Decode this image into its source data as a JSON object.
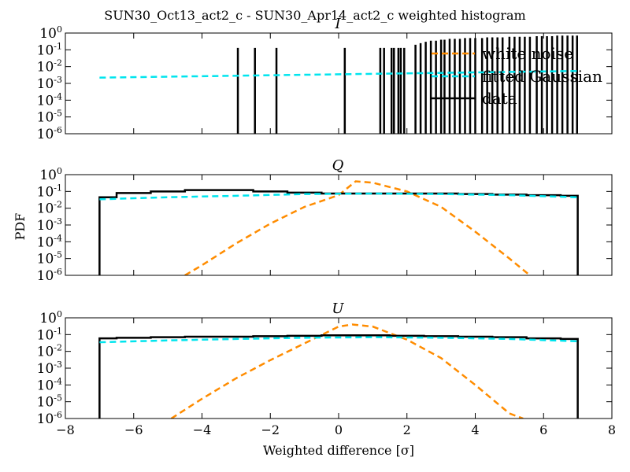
{
  "figure": {
    "title": "SUN30_Oct13_act2_c - SUN30_Apr14_act2_c weighted histogram",
    "ylabel": "PDF",
    "xlabel": "Weighted difference [σ]"
  },
  "colors": {
    "data": "#000000",
    "white_noise": "#ff8c00",
    "fitted_gaussian": "#00e5ee"
  },
  "legend": {
    "position": "upper-right",
    "entries": [
      {
        "key": "white_noise",
        "label": "white noise"
      },
      {
        "key": "fitted_gaussian",
        "label": "fitted Gaussian"
      },
      {
        "key": "data",
        "label": "data"
      }
    ]
  },
  "chart_data": [
    {
      "type": "line",
      "title": "I",
      "xlim": [
        -8,
        8
      ],
      "ylim": [
        1e-06,
        1
      ],
      "yscale": "log",
      "xticks": [
        -8,
        -6,
        -4,
        -2,
        0,
        2,
        4,
        6,
        8
      ],
      "xtick_labels": [
        "−8",
        "−6",
        "−4",
        "−2",
        "0",
        "2",
        "4",
        "6",
        "8"
      ],
      "yticks": [
        1e-06,
        1e-05,
        0.0001,
        0.001,
        0.01,
        0.1,
        1
      ],
      "ytick_labels": [
        {
          "base": "10",
          "exp": "-6"
        },
        {
          "base": "10",
          "exp": "-5"
        },
        {
          "base": "10",
          "exp": "-4"
        },
        {
          "base": "10",
          "exp": "-3"
        },
        {
          "base": "10",
          "exp": "-2"
        },
        {
          "base": "10",
          "exp": "-1"
        },
        {
          "base": "10",
          "exp": "0"
        }
      ],
      "show_xticklabels": false,
      "series": [
        {
          "key": "data",
          "style": "spikes",
          "x": [
            -2.95,
            -2.45,
            -1.82,
            0.18,
            1.22,
            1.33,
            1.55,
            1.62,
            1.75,
            1.82,
            1.92,
            2.25,
            2.4,
            2.55,
            2.7,
            2.85,
            3.0,
            3.1,
            3.25,
            3.4,
            3.55,
            3.7,
            3.85,
            4.0,
            4.2,
            4.35,
            4.5,
            4.65,
            4.8,
            5.0,
            5.15,
            5.3,
            5.45,
            5.6,
            5.8,
            5.95,
            6.1,
            6.25,
            6.4,
            6.55,
            6.7,
            6.85,
            6.98
          ],
          "values": [
            0.13,
            0.13,
            0.13,
            0.13,
            0.13,
            0.13,
            0.13,
            0.13,
            0.13,
            0.13,
            0.13,
            0.2,
            0.25,
            0.3,
            0.35,
            0.35,
            0.4,
            0.4,
            0.45,
            0.45,
            0.45,
            0.5,
            0.5,
            0.5,
            0.5,
            0.55,
            0.55,
            0.55,
            0.55,
            0.6,
            0.6,
            0.6,
            0.6,
            0.6,
            0.65,
            0.65,
            0.65,
            0.65,
            0.7,
            0.7,
            0.7,
            0.7,
            0.7
          ]
        },
        {
          "key": "fitted_gaussian",
          "style": "dashed",
          "x": [
            -7.0,
            7.0
          ],
          "values": [
            0.0022,
            0.0055
          ]
        }
      ]
    },
    {
      "type": "line",
      "title": "Q",
      "xlim": [
        -8,
        8
      ],
      "ylim": [
        1e-06,
        1
      ],
      "yscale": "log",
      "xticks": [
        -8,
        -6,
        -4,
        -2,
        0,
        2,
        4,
        6,
        8
      ],
      "xtick_labels": [
        "−8",
        "−6",
        "−4",
        "−2",
        "0",
        "2",
        "4",
        "6",
        "8"
      ],
      "yticks": [
        1e-06,
        1e-05,
        0.0001,
        0.001,
        0.01,
        0.1,
        1
      ],
      "ytick_labels": [
        {
          "base": "10",
          "exp": "-6"
        },
        {
          "base": "10",
          "exp": "-5"
        },
        {
          "base": "10",
          "exp": "-4"
        },
        {
          "base": "10",
          "exp": "-3"
        },
        {
          "base": "10",
          "exp": "-2"
        },
        {
          "base": "10",
          "exp": "-1"
        },
        {
          "base": "10",
          "exp": "0"
        }
      ],
      "show_xticklabels": false,
      "series": [
        {
          "key": "data",
          "style": "step",
          "x": [
            -7.0,
            -6.0,
            -5.0,
            -4.0,
            -3.0,
            -2.0,
            -1.0,
            0.0,
            1.0,
            2.0,
            3.0,
            4.0,
            5.0,
            6.0,
            7.0
          ],
          "values": [
            0.045,
            0.08,
            0.1,
            0.12,
            0.12,
            0.1,
            0.085,
            0.075,
            0.075,
            0.075,
            0.075,
            0.07,
            0.065,
            0.06,
            0.055
          ]
        },
        {
          "key": "fitted_gaussian",
          "style": "dashed",
          "x": [
            -7.0,
            -5.0,
            -3.0,
            -1.0,
            1.0,
            3.0,
            5.0,
            7.0
          ],
          "values": [
            0.034,
            0.045,
            0.055,
            0.07,
            0.075,
            0.07,
            0.06,
            0.045
          ]
        },
        {
          "key": "white_noise",
          "style": "dashed",
          "x": [
            -4.5,
            -4.0,
            -3.0,
            -2.0,
            -1.0,
            0.0,
            0.5,
            1.0,
            2.0,
            3.0,
            4.0,
            5.0,
            5.6
          ],
          "values": [
            1e-06,
            4e-06,
            8e-05,
            0.0012,
            0.012,
            0.06,
            0.4,
            0.33,
            0.1,
            0.012,
            0.0004,
            1e-05,
            1e-06
          ]
        }
      ]
    },
    {
      "type": "line",
      "title": "U",
      "xlim": [
        -8,
        8
      ],
      "ylim": [
        1e-06,
        1
      ],
      "yscale": "log",
      "xticks": [
        -8,
        -6,
        -4,
        -2,
        0,
        2,
        4,
        6,
        8
      ],
      "xtick_labels": [
        "−8",
        "−6",
        "−4",
        "−2",
        "0",
        "2",
        "4",
        "6",
        "8"
      ],
      "yticks": [
        1e-06,
        1e-05,
        0.0001,
        0.001,
        0.01,
        0.1,
        1
      ],
      "ytick_labels": [
        {
          "base": "10",
          "exp": "-6"
        },
        {
          "base": "10",
          "exp": "-5"
        },
        {
          "base": "10",
          "exp": "-4"
        },
        {
          "base": "10",
          "exp": "-3"
        },
        {
          "base": "10",
          "exp": "-2"
        },
        {
          "base": "10",
          "exp": "-1"
        },
        {
          "base": "10",
          "exp": "0"
        }
      ],
      "show_xticklabels": true,
      "series": [
        {
          "key": "data",
          "style": "step",
          "x": [
            -7.0,
            -6.0,
            -5.0,
            -4.0,
            -3.0,
            -2.0,
            -1.0,
            0.0,
            1.0,
            2.0,
            3.0,
            4.0,
            5.0,
            6.0,
            7.0
          ],
          "values": [
            0.06,
            0.065,
            0.07,
            0.075,
            0.075,
            0.08,
            0.085,
            0.09,
            0.09,
            0.085,
            0.08,
            0.075,
            0.07,
            0.06,
            0.055
          ]
        },
        {
          "key": "fitted_gaussian",
          "style": "dashed",
          "x": [
            -7.0,
            -5.0,
            -3.0,
            -1.0,
            1.0,
            3.0,
            5.0,
            7.0
          ],
          "values": [
            0.035,
            0.045,
            0.055,
            0.065,
            0.07,
            0.065,
            0.055,
            0.04
          ]
        },
        {
          "key": "white_noise",
          "style": "dashed",
          "x": [
            -4.9,
            -4.0,
            -3.0,
            -2.0,
            -1.0,
            0.0,
            0.4,
            1.0,
            2.0,
            3.0,
            4.0,
            5.0,
            5.4
          ],
          "values": [
            1e-06,
            1.5e-05,
            0.00025,
            0.003,
            0.03,
            0.3,
            0.4,
            0.3,
            0.05,
            0.004,
            0.0001,
            2e-06,
            1e-06
          ]
        }
      ]
    }
  ]
}
